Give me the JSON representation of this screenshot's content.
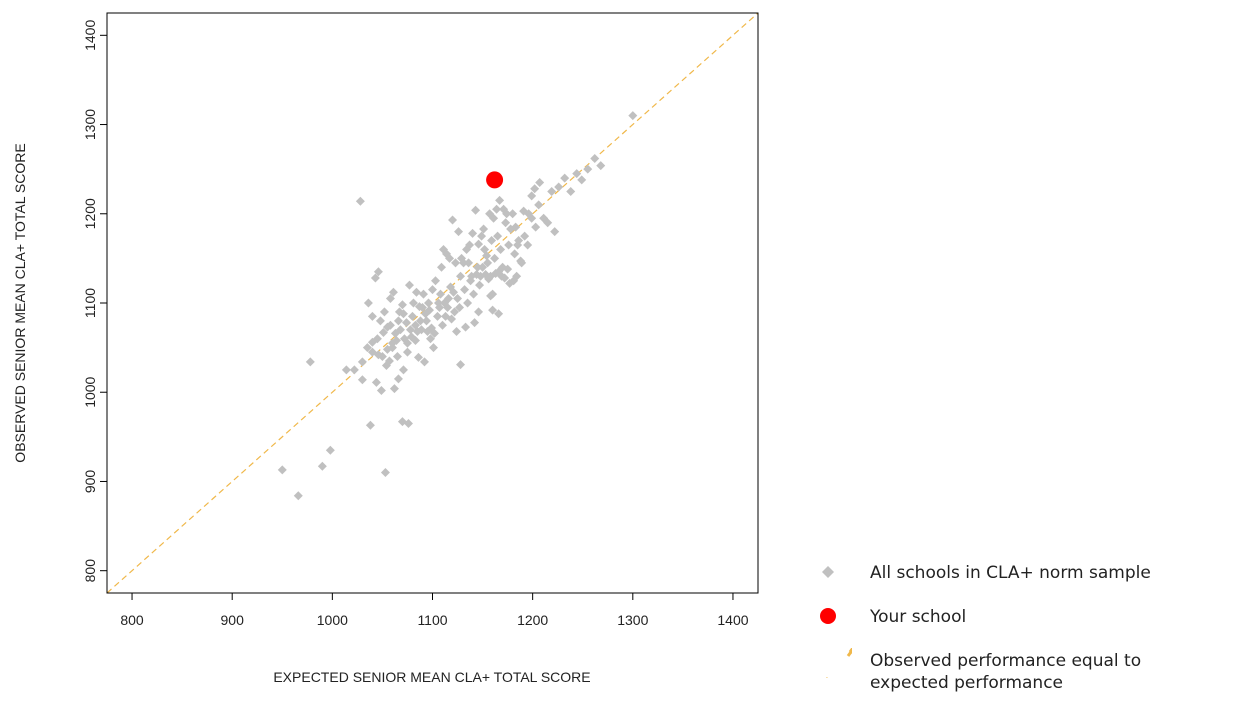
{
  "chart_data": {
    "type": "scatter",
    "xlabel": "EXPECTED SENIOR MEAN CLA+ TOTAL SCORE",
    "ylabel": "OBSERVED SENIOR MEAN CLA+ TOTAL SCORE",
    "xlim": [
      775,
      1425
    ],
    "ylim": [
      775,
      1425
    ],
    "xticks": [
      800,
      900,
      1000,
      1100,
      1200,
      1300,
      1400
    ],
    "yticks": [
      800,
      900,
      1000,
      1100,
      1200,
      1300,
      1400
    ],
    "grid": false,
    "legend_position": "right-bottom, outside plot",
    "colors": {
      "norm_sample": "#c0c0c0",
      "your_school": "#ff0000",
      "reference_line": "#f0b84a"
    },
    "series": [
      {
        "name": "All schools in CLA+ norm sample",
        "marker": "diamond",
        "points": [
          [
            950,
            913
          ],
          [
            966,
            884
          ],
          [
            990,
            917
          ],
          [
            998,
            935
          ],
          [
            1053,
            910
          ],
          [
            1038,
            963
          ],
          [
            1070,
            967
          ],
          [
            1076,
            965
          ],
          [
            1028,
            1214
          ],
          [
            978,
            1034
          ],
          [
            1014,
            1025
          ],
          [
            1022,
            1025
          ],
          [
            1030,
            1014
          ],
          [
            1044,
            1011
          ],
          [
            1049,
            1002
          ],
          [
            1062,
            1004
          ],
          [
            1066,
            1015
          ],
          [
            1071,
            1025
          ],
          [
            1086,
            1039
          ],
          [
            1092,
            1034
          ],
          [
            1128,
            1031
          ],
          [
            1030,
            1034
          ],
          [
            1035,
            1050
          ],
          [
            1040,
            1045
          ],
          [
            1045,
            1060
          ],
          [
            1050,
            1040
          ],
          [
            1055,
            1048
          ],
          [
            1060,
            1055
          ],
          [
            1057,
            1035
          ],
          [
            1065,
            1040
          ],
          [
            1072,
            1060
          ],
          [
            1075,
            1045
          ],
          [
            1078,
            1070
          ],
          [
            1080,
            1085
          ],
          [
            1083,
            1075
          ],
          [
            1088,
            1080
          ],
          [
            1090,
            1095
          ],
          [
            1093,
            1088
          ],
          [
            1096,
            1100
          ],
          [
            1099,
            1072
          ],
          [
            1102,
            1066
          ],
          [
            1105,
            1085
          ],
          [
            1108,
            1110
          ],
          [
            1112,
            1100
          ],
          [
            1115,
            1095
          ],
          [
            1118,
            1118
          ],
          [
            1122,
            1090
          ],
          [
            1125,
            1105
          ],
          [
            1128,
            1130
          ],
          [
            1132,
            1115
          ],
          [
            1135,
            1100
          ],
          [
            1138,
            1125
          ],
          [
            1142,
            1078
          ],
          [
            1145,
            1140
          ],
          [
            1148,
            1130
          ],
          [
            1152,
            1160
          ],
          [
            1155,
            1145
          ],
          [
            1158,
            1130
          ],
          [
            1160,
            1110
          ],
          [
            1162,
            1150
          ],
          [
            1165,
            1175
          ],
          [
            1168,
            1160
          ],
          [
            1170,
            1140
          ],
          [
            1173,
            1190
          ],
          [
            1176,
            1165
          ],
          [
            1180,
            1200
          ],
          [
            1183,
            1185
          ],
          [
            1186,
            1170
          ],
          [
            1189,
            1145
          ],
          [
            1192,
            1175
          ],
          [
            1196,
            1200
          ],
          [
            1199,
            1220
          ],
          [
            1203,
            1185
          ],
          [
            1207,
            1235
          ],
          [
            1211,
            1195
          ],
          [
            1215,
            1190
          ],
          [
            1219,
            1225
          ],
          [
            1222,
            1180
          ],
          [
            1226,
            1230
          ],
          [
            1232,
            1240
          ],
          [
            1238,
            1225
          ],
          [
            1244,
            1245
          ],
          [
            1249,
            1238
          ],
          [
            1255,
            1250
          ],
          [
            1262,
            1262
          ],
          [
            1268,
            1254
          ],
          [
            1300,
            1310
          ],
          [
            1036,
            1100
          ],
          [
            1040,
            1085
          ],
          [
            1043,
            1128
          ],
          [
            1046,
            1135
          ],
          [
            1052,
            1090
          ],
          [
            1055,
            1073
          ],
          [
            1058,
            1105
          ],
          [
            1061,
            1112
          ],
          [
            1063,
            1066
          ],
          [
            1067,
            1090
          ],
          [
            1070,
            1098
          ],
          [
            1074,
            1078
          ],
          [
            1077,
            1120
          ],
          [
            1081,
            1100
          ],
          [
            1084,
            1112
          ],
          [
            1087,
            1096
          ],
          [
            1091,
            1110
          ],
          [
            1094,
            1080
          ],
          [
            1097,
            1092
          ],
          [
            1100,
            1115
          ],
          [
            1103,
            1125
          ],
          [
            1106,
            1100
          ],
          [
            1109,
            1140
          ],
          [
            1111,
            1160
          ],
          [
            1114,
            1155
          ],
          [
            1117,
            1150
          ],
          [
            1120,
            1193
          ],
          [
            1123,
            1145
          ],
          [
            1126,
            1180
          ],
          [
            1129,
            1150
          ],
          [
            1131,
            1145
          ],
          [
            1134,
            1160
          ],
          [
            1137,
            1165
          ],
          [
            1140,
            1178
          ],
          [
            1143,
            1204
          ],
          [
            1146,
            1166
          ],
          [
            1149,
            1175
          ],
          [
            1151,
            1183
          ],
          [
            1154,
            1153
          ],
          [
            1157,
            1200
          ],
          [
            1159,
            1170
          ],
          [
            1161,
            1195
          ],
          [
            1164,
            1205
          ],
          [
            1167,
            1215
          ],
          [
            1171,
            1205
          ],
          [
            1174,
            1200
          ],
          [
            1178,
            1183
          ],
          [
            1182,
            1155
          ],
          [
            1185,
            1165
          ],
          [
            1188,
            1147
          ],
          [
            1191,
            1203
          ],
          [
            1195,
            1165
          ],
          [
            1199,
            1195
          ],
          [
            1202,
            1228
          ],
          [
            1206,
            1210
          ],
          [
            1136,
            1145
          ],
          [
            1139,
            1130
          ],
          [
            1141,
            1110
          ],
          [
            1144,
            1132
          ],
          [
            1147,
            1120
          ],
          [
            1150,
            1140
          ],
          [
            1153,
            1132
          ],
          [
            1156,
            1127
          ],
          [
            1158,
            1108
          ],
          [
            1163,
            1133
          ],
          [
            1166,
            1135
          ],
          [
            1169,
            1130
          ],
          [
            1172,
            1128
          ],
          [
            1175,
            1138
          ],
          [
            1177,
            1122
          ],
          [
            1181,
            1125
          ],
          [
            1184,
            1130
          ],
          [
            1160,
            1092
          ],
          [
            1166,
            1088
          ],
          [
            1048,
            1080
          ],
          [
            1051,
            1067
          ],
          [
            1058,
            1075
          ],
          [
            1066,
            1080
          ],
          [
            1071,
            1088
          ],
          [
            1083,
            1058
          ],
          [
            1085,
            1068
          ],
          [
            1098,
            1060
          ],
          [
            1101,
            1050
          ],
          [
            1110,
            1075
          ],
          [
            1119,
            1082
          ],
          [
            1124,
            1068
          ],
          [
            1133,
            1073
          ],
          [
            1146,
            1090
          ],
          [
            1040,
            1056
          ],
          [
            1046,
            1042
          ],
          [
            1054,
            1030
          ],
          [
            1060,
            1050
          ],
          [
            1064,
            1058
          ],
          [
            1068,
            1070
          ],
          [
            1075,
            1055
          ],
          [
            1079,
            1062
          ],
          [
            1089,
            1070
          ],
          [
            1095,
            1068
          ],
          [
            1107,
            1095
          ],
          [
            1113,
            1085
          ],
          [
            1116,
            1105
          ],
          [
            1121,
            1112
          ],
          [
            1127,
            1095
          ]
        ]
      },
      {
        "name": "Your school",
        "marker": "circle",
        "points": [
          [
            1162,
            1238
          ]
        ]
      },
      {
        "name": "Observed performance equal to expected performance",
        "marker": "dashed-line",
        "line": [
          [
            775,
            775
          ],
          [
            1425,
            1425
          ]
        ]
      }
    ]
  },
  "legend": {
    "items": [
      {
        "label": "All schools in CLA+ norm sample",
        "icon": "gray-diamond"
      },
      {
        "label": "Your school",
        "icon": "red-circle"
      },
      {
        "label_line1": "Observed performance equal to",
        "label_line2": "expected performance",
        "icon": "orange-dash"
      }
    ]
  }
}
